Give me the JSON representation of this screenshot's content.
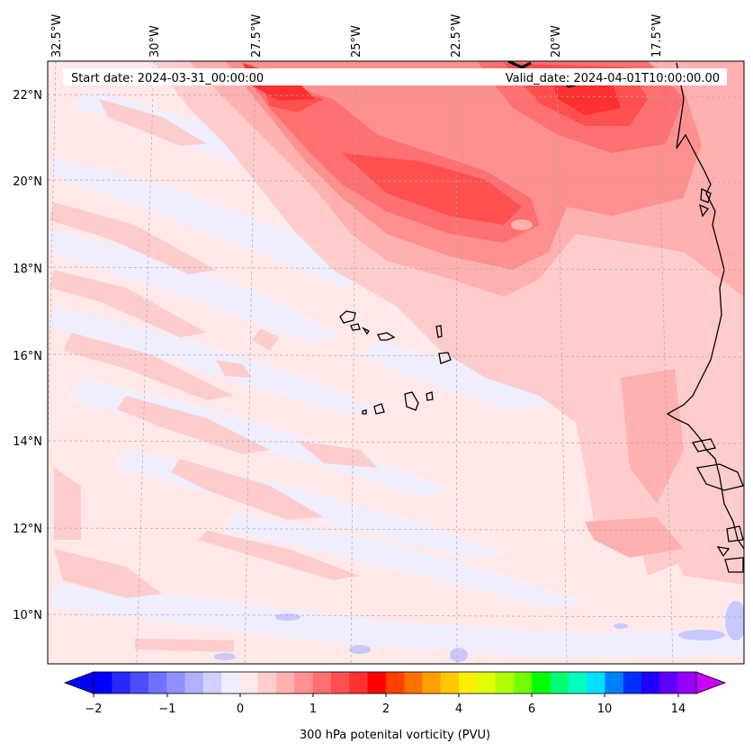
{
  "map": {
    "type": "filled-contour-map",
    "variable": "300 hPa potential vorticity",
    "region": "Eastern tropical Atlantic (Cape Verde / West Africa coast)",
    "start_date_label": "Start date: 2024-03-31_00:00:00",
    "valid_date_label": "Valid_date: 2024-04-01T10:00:00.00",
    "lon_ticks": [
      "32.5°W",
      "30°W",
      "27.5°W",
      "25°W",
      "22.5°W",
      "20°W",
      "17.5°W"
    ],
    "lat_ticks": [
      "22°N",
      "20°N",
      "18°N",
      "16°N",
      "14°N",
      "12°N",
      "10°N"
    ],
    "lon_range": [
      -33.0,
      -15.5
    ],
    "lat_range": [
      8.9,
      22.8
    ],
    "colorbar": {
      "label": "300 hPa potenital vorticity (PVU)",
      "tick_labels": [
        "−2",
        "−1",
        "0",
        "1",
        "2",
        "4",
        "6",
        "10",
        "14"
      ],
      "extend": "both",
      "colors": [
        "#0000ff",
        "#2828ff",
        "#4d4dff",
        "#7070ff",
        "#9090ff",
        "#b0b0ff",
        "#d0d0ff",
        "#eeeeff",
        "#ffe8e8",
        "#ffcccc",
        "#ffb0b0",
        "#ff9090",
        "#ff7070",
        "#ff5050",
        "#ff3030",
        "#ff0000",
        "#ff4000",
        "#ff7000",
        "#ffa000",
        "#ffc800",
        "#ffee00",
        "#e0ff00",
        "#b0ff00",
        "#70ff00",
        "#00ff00",
        "#00ff70",
        "#00ffc0",
        "#00e0ff",
        "#0080ff",
        "#0030ff",
        "#2000ff",
        "#6000ff",
        "#9900ff"
      ],
      "over_color": "#cc00ff",
      "under_color": "#0000ff"
    }
  }
}
